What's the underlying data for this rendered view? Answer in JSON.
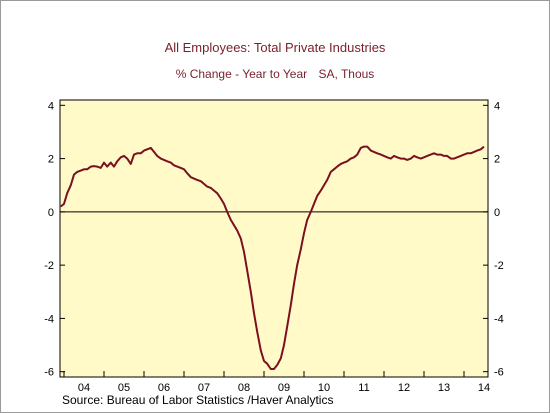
{
  "chart_data": {
    "type": "line",
    "title": "All Employees: Total Private Industries",
    "subtitle_left": "% Change - Year to Year",
    "subtitle_right": "SA, Thous",
    "source": "Source:  Bureau of Labor Statistics /Haver Analytics",
    "x_tick_labels": [
      "04",
      "05",
      "06",
      "07",
      "08",
      "09",
      "10",
      "11",
      "12",
      "13",
      "14"
    ],
    "xlim": [
      2003.9,
      2014.6
    ],
    "ylim": [
      -6.2,
      4.2
    ],
    "y_ticks": [
      4,
      2,
      0,
      -2,
      -4,
      -6
    ],
    "zero_line": true,
    "colors": {
      "line": "#7a1020",
      "plot_bg": "#fffac8",
      "title": "#7a1f2b"
    },
    "series": [
      {
        "x": [
          2003.92,
          2004.0,
          2004.08,
          2004.17,
          2004.25,
          2004.33,
          2004.42,
          2004.5,
          2004.58,
          2004.67,
          2004.75,
          2004.83,
          2004.92,
          2005.0,
          2005.08,
          2005.17,
          2005.25,
          2005.33,
          2005.42,
          2005.5,
          2005.58,
          2005.67,
          2005.75,
          2005.83,
          2005.92,
          2006.0,
          2006.08,
          2006.17,
          2006.25,
          2006.33,
          2006.42,
          2006.5,
          2006.58,
          2006.67,
          2006.75,
          2006.83,
          2006.92,
          2007.0,
          2007.08,
          2007.17,
          2007.25,
          2007.33,
          2007.42,
          2007.5,
          2007.58,
          2007.67,
          2007.75,
          2007.83,
          2007.92,
          2008.0,
          2008.08,
          2008.17,
          2008.25,
          2008.33,
          2008.42,
          2008.5,
          2008.58,
          2008.67,
          2008.75,
          2008.83,
          2008.92,
          2009.0,
          2009.08,
          2009.17,
          2009.25,
          2009.33,
          2009.42,
          2009.5,
          2009.58,
          2009.67,
          2009.75,
          2009.83,
          2009.92,
          2010.0,
          2010.08,
          2010.17,
          2010.25,
          2010.33,
          2010.42,
          2010.5,
          2010.58,
          2010.67,
          2010.75,
          2010.83,
          2010.92,
          2011.0,
          2011.08,
          2011.17,
          2011.25,
          2011.33,
          2011.42,
          2011.5,
          2011.58,
          2011.67,
          2011.75,
          2011.83,
          2011.92,
          2012.0,
          2012.08,
          2012.17,
          2012.25,
          2012.33,
          2012.42,
          2012.5,
          2012.58,
          2012.67,
          2012.75,
          2012.83,
          2012.92,
          2013.0,
          2013.08,
          2013.17,
          2013.25,
          2013.33,
          2013.42,
          2013.5,
          2013.58,
          2013.67,
          2013.75,
          2013.83,
          2013.92,
          2014.0,
          2014.08,
          2014.17,
          2014.25,
          2014.33,
          2014.42,
          2014.5
        ],
        "values": [
          0.2,
          0.3,
          0.7,
          1.0,
          1.4,
          1.5,
          1.55,
          1.6,
          1.6,
          1.7,
          1.72,
          1.7,
          1.65,
          1.85,
          1.7,
          1.85,
          1.7,
          1.9,
          2.05,
          2.1,
          2.0,
          1.8,
          2.15,
          2.2,
          2.2,
          2.3,
          2.35,
          2.4,
          2.25,
          2.1,
          2.0,
          1.95,
          1.9,
          1.85,
          1.75,
          1.7,
          1.65,
          1.6,
          1.45,
          1.3,
          1.25,
          1.2,
          1.15,
          1.05,
          0.95,
          0.9,
          0.8,
          0.7,
          0.5,
          0.3,
          0.0,
          -0.3,
          -0.5,
          -0.7,
          -1.0,
          -1.5,
          -2.2,
          -3.0,
          -3.8,
          -4.5,
          -5.2,
          -5.6,
          -5.7,
          -5.9,
          -5.9,
          -5.75,
          -5.5,
          -5.0,
          -4.3,
          -3.5,
          -2.7,
          -2.0,
          -1.4,
          -0.8,
          -0.3,
          0.0,
          0.3,
          0.6,
          0.8,
          1.0,
          1.2,
          1.5,
          1.6,
          1.7,
          1.8,
          1.85,
          1.9,
          2.0,
          2.05,
          2.15,
          2.4,
          2.45,
          2.45,
          2.3,
          2.25,
          2.2,
          2.15,
          2.1,
          2.05,
          2.0,
          2.1,
          2.05,
          2.0,
          2.0,
          1.95,
          2.0,
          2.1,
          2.05,
          2.0,
          2.05,
          2.1,
          2.15,
          2.2,
          2.15,
          2.15,
          2.1,
          2.1,
          2.0,
          2.0,
          2.05,
          2.1,
          2.15,
          2.2,
          2.2,
          2.25,
          2.3,
          2.35,
          2.45
        ]
      }
    ]
  }
}
